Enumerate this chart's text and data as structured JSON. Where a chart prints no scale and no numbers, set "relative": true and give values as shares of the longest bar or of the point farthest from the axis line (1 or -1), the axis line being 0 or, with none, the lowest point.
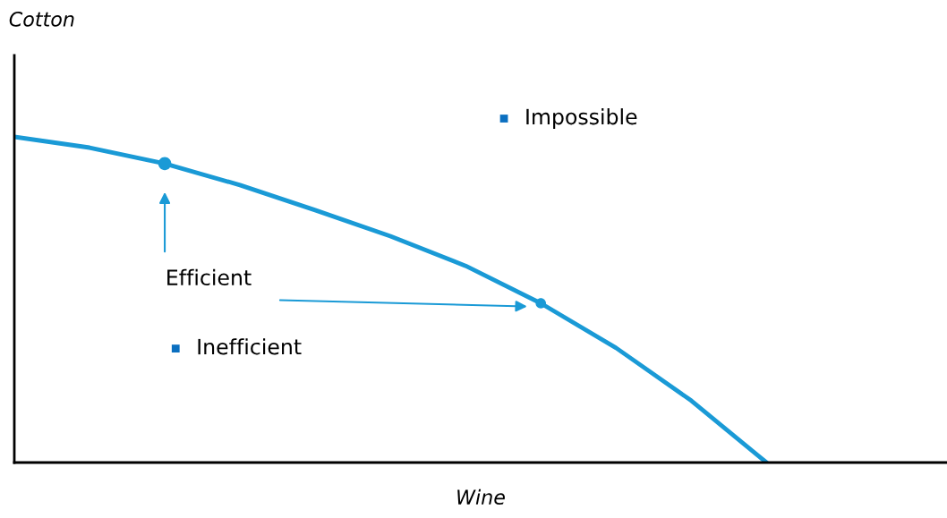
{
  "chart_data": {
    "type": "line",
    "relative": true,
    "xlabel": "Wine",
    "categories": [
      null,
      null,
      null,
      null,
      null,
      null,
      null,
      null,
      null,
      null,
      null
    ],
    "series": [
      {
        "color": "#1a9ad6",
        "values": [
          1,
          0.967,
          0.918,
          0.852,
          0.775,
          0.695,
          0.604,
          0.489,
          0.352,
          0.19,
          0
        ]
      }
    ],
    "annotations": [
      "Impossible",
      "Efficient",
      "Inefficient",
      "Cotton"
    ]
  }
}
